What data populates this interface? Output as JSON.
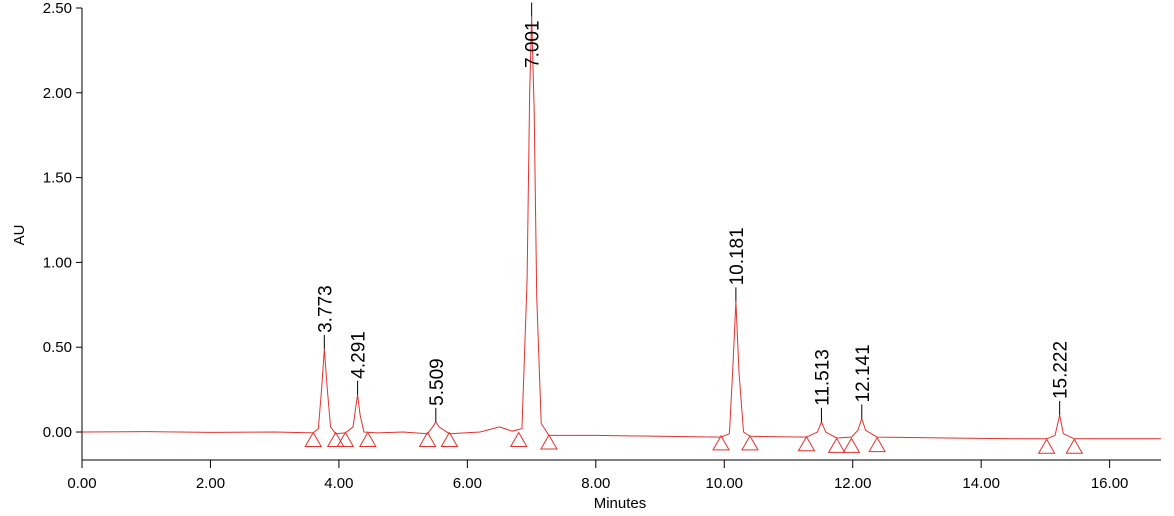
{
  "chart_data": {
    "type": "line",
    "x_label": "Minutes",
    "y_label": "AU",
    "xlim": [
      0,
      16.8
    ],
    "ylim": [
      -0.165,
      2.5
    ],
    "xticks": [
      {
        "value": 0,
        "label": "0.00"
      },
      {
        "value": 2,
        "label": "2.00"
      },
      {
        "value": 4,
        "label": "4.00"
      },
      {
        "value": 6,
        "label": "6.00"
      },
      {
        "value": 8,
        "label": "8.00"
      },
      {
        "value": 10,
        "label": "10.00"
      },
      {
        "value": 12,
        "label": "12.00"
      },
      {
        "value": 14,
        "label": "14.00"
      },
      {
        "value": 16,
        "label": "16.00"
      }
    ],
    "yticks": [
      {
        "value": 0,
        "label": "0.00"
      },
      {
        "value": 0.5,
        "label": "0.50"
      },
      {
        "value": 1,
        "label": "1.00"
      },
      {
        "value": 1.5,
        "label": "1.50"
      },
      {
        "value": 2,
        "label": "2.00"
      },
      {
        "value": 2.5,
        "label": "2.50"
      }
    ],
    "color": "#e3322d",
    "x": [
      0,
      1,
      2,
      3,
      3.6,
      3.68,
      3.73,
      3.773,
      3.82,
      3.87,
      3.95,
      4.1,
      4.22,
      4.26,
      4.291,
      4.33,
      4.39,
      4.6,
      5.0,
      5.38,
      5.46,
      5.509,
      5.56,
      5.72,
      6.2,
      6.5,
      6.7,
      6.85,
      6.93,
      6.97,
      7.001,
      7.04,
      7.08,
      7.15,
      7.27,
      8,
      9,
      9.95,
      10.08,
      10.13,
      10.181,
      10.23,
      10.3,
      10.4,
      11.28,
      11.45,
      11.513,
      11.58,
      11.75,
      11.98,
      12.08,
      12.141,
      12.2,
      12.38,
      13.5,
      14.5,
      15.02,
      15.15,
      15.222,
      15.28,
      15.45,
      16.8
    ],
    "values": [
      0,
      0.002,
      -0.002,
      0,
      -0.005,
      0.02,
      0.25,
      0.49,
      0.25,
      0.03,
      -0.01,
      -0.005,
      0.03,
      0.14,
      0.22,
      0.1,
      0,
      -0.005,
      0,
      -0.01,
      0.03,
      0.06,
      0.03,
      -0.01,
      0,
      0.03,
      0.005,
      0.02,
      0.9,
      2.0,
      2.45,
      1.9,
      0.8,
      0.05,
      -0.02,
      -0.02,
      -0.025,
      -0.03,
      -0.01,
      0.35,
      0.77,
      0.35,
      0,
      -0.025,
      -0.03,
      0,
      0.06,
      0,
      -0.035,
      -0.03,
      0.01,
      0.08,
      0.01,
      -0.03,
      -0.035,
      -0.04,
      -0.04,
      -0.02,
      0.1,
      -0.01,
      -0.04,
      -0.04
    ],
    "peaks": {
      "x": [
        3.773,
        4.291,
        5.509,
        7.001,
        10.181,
        11.513,
        12.141,
        15.222
      ],
      "heights": [
        0.49,
        0.22,
        0.06,
        2.45,
        0.77,
        0.06,
        0.08,
        0.1
      ]
    },
    "baseline_markers": {
      "x": [
        3.6,
        3.95,
        4.1,
        4.45,
        5.38,
        5.72,
        6.8,
        7.27,
        9.95,
        10.4,
        11.28,
        11.75,
        11.98,
        12.38,
        15.02,
        15.45
      ],
      "values": [
        -0.05,
        -0.05,
        -0.05,
        -0.05,
        -0.05,
        -0.05,
        -0.05,
        -0.065,
        -0.07,
        -0.07,
        -0.075,
        -0.085,
        -0.085,
        -0.08,
        -0.09,
        -0.09
      ]
    }
  }
}
